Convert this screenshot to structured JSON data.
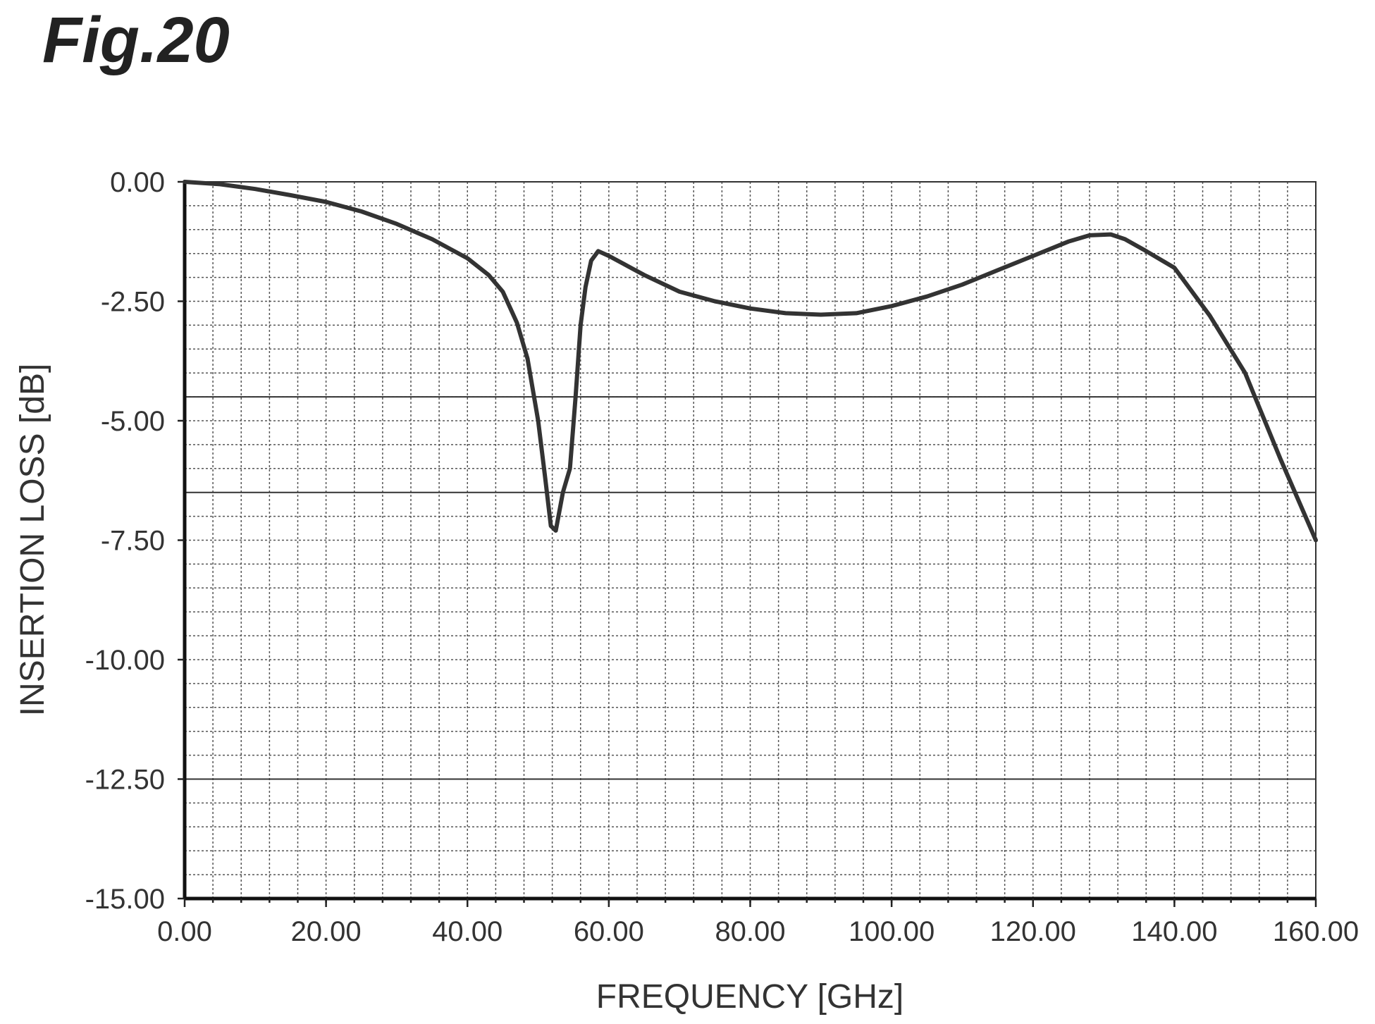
{
  "figure_label": "Fig.20",
  "chart_data": {
    "type": "line",
    "title": "",
    "xlabel": "FREQUENCY [GHz]",
    "ylabel": "INSERTION LOSS [dB]",
    "xlim": [
      0,
      160
    ],
    "ylim": [
      -15,
      0
    ],
    "x_ticks": [
      "0.00",
      "20.00",
      "40.00",
      "60.00",
      "80.00",
      "100.00",
      "120.00",
      "140.00",
      "160.00"
    ],
    "y_ticks": [
      "0.00",
      "-2.50",
      "-5.00",
      "-7.50",
      "-10.00",
      "-12.50",
      "-15.00"
    ],
    "grid": true,
    "legend": "none",
    "line_color": "#333333",
    "series": [
      {
        "x": [
          0,
          5,
          10,
          15,
          20,
          25,
          30,
          35,
          40,
          43,
          45,
          47,
          48.5,
          50,
          51,
          51.8,
          52.5,
          53.5,
          54.5,
          55.3,
          56,
          56.7,
          57.5,
          58.5,
          60,
          65,
          70,
          75,
          80,
          85,
          90,
          95,
          100,
          105,
          110,
          115,
          120,
          125,
          128,
          131,
          133,
          136,
          140,
          145,
          150,
          155,
          160
        ],
        "y": [
          0,
          -0.05,
          -0.15,
          -0.28,
          -0.42,
          -0.62,
          -0.88,
          -1.2,
          -1.6,
          -1.95,
          -2.3,
          -2.95,
          -3.7,
          -5.0,
          -6.2,
          -7.2,
          -7.3,
          -6.5,
          -6.0,
          -4.5,
          -3.0,
          -2.2,
          -1.65,
          -1.45,
          -1.55,
          -1.95,
          -2.3,
          -2.5,
          -2.65,
          -2.75,
          -2.78,
          -2.75,
          -2.6,
          -2.4,
          -2.15,
          -1.85,
          -1.55,
          -1.25,
          -1.12,
          -1.1,
          -1.2,
          -1.45,
          -1.8,
          -2.8,
          -4.0,
          -5.8,
          -7.5
        ]
      }
    ]
  }
}
